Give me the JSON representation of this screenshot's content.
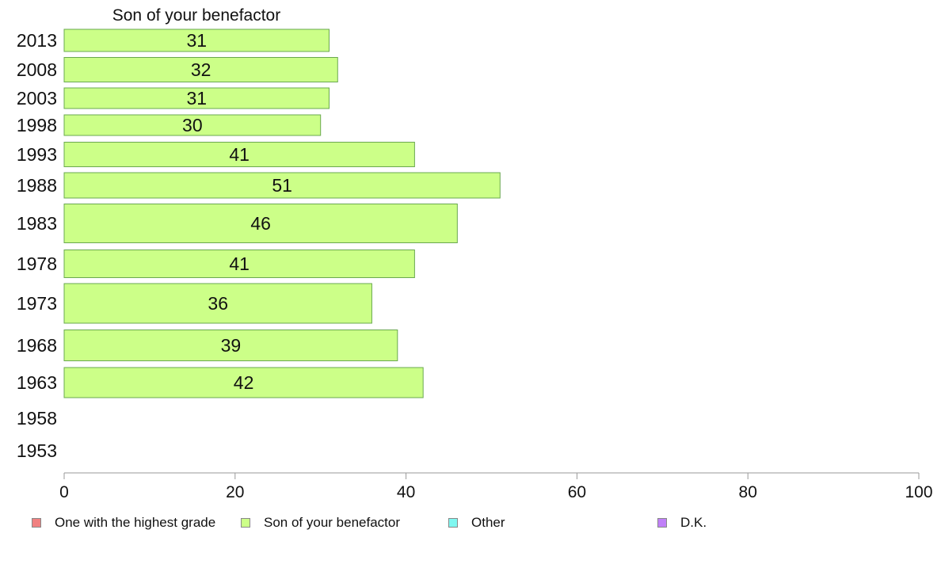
{
  "chart_data": {
    "type": "bar",
    "orientation": "horizontal",
    "title": "Son of your benefactor",
    "categories": [
      "2013",
      "2008",
      "2003",
      "1998",
      "1993",
      "1988",
      "1983",
      "1978",
      "1973",
      "1968",
      "1963",
      "1958",
      "1953"
    ],
    "series": [
      {
        "name": "Son of your benefactor",
        "values": [
          31,
          32,
          31,
          30,
          41,
          51,
          46,
          41,
          36,
          39,
          42,
          null,
          null
        ]
      }
    ],
    "xlim": [
      0,
      100
    ],
    "xticks": [
      0,
      20,
      40,
      60,
      80,
      100
    ],
    "xlabel": "",
    "ylabel": "",
    "grid": false,
    "legend_position": "bottom",
    "bar_color": "#ccff88",
    "bar_border_color": "#6aa84f"
  },
  "legend": [
    {
      "label": "One with the highest grade",
      "color": "#f08080"
    },
    {
      "label": "Son of your benefactor",
      "color": "#ccff88"
    },
    {
      "label": "Other",
      "color": "#7ff7f0"
    },
    {
      "label": "D.K.",
      "color": "#c080f8"
    }
  ]
}
